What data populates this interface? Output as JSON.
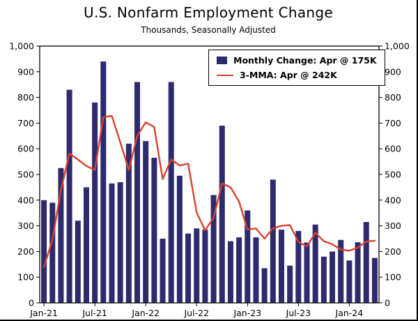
{
  "chart_data": {
    "type": "bar+line",
    "title": "U.S. Nonfarm Employment Change",
    "subtitle": "Thousands, Seasonally Adjusted",
    "ylim": [
      0,
      1000
    ],
    "ytick_step": 100,
    "grid": false,
    "legend_position": "top-right",
    "x": [
      "Jan-21",
      "Feb-21",
      "Mar-21",
      "Apr-21",
      "May-21",
      "Jun-21",
      "Jul-21",
      "Aug-21",
      "Sep-21",
      "Oct-21",
      "Nov-21",
      "Dec-21",
      "Jan-22",
      "Feb-22",
      "Mar-22",
      "Apr-22",
      "May-22",
      "Jun-22",
      "Jul-22",
      "Aug-22",
      "Sep-22",
      "Oct-22",
      "Nov-22",
      "Dec-22",
      "Jan-23",
      "Feb-23",
      "Mar-23",
      "Apr-23",
      "May-23",
      "Jun-23",
      "Jul-23",
      "Aug-23",
      "Sep-23",
      "Oct-23",
      "Nov-23",
      "Dec-23",
      "Jan-24",
      "Feb-24",
      "Mar-24",
      "Apr-24"
    ],
    "xticks": [
      {
        "index": 0,
        "label": "Jan-21"
      },
      {
        "index": 6,
        "label": "Jul-21"
      },
      {
        "index": 12,
        "label": "Jan-22"
      },
      {
        "index": 18,
        "label": "Jul-22"
      },
      {
        "index": 24,
        "label": "Jan-23"
      },
      {
        "index": 30,
        "label": "Jul-23"
      },
      {
        "index": 36,
        "label": "Jan-24"
      }
    ],
    "series": [
      {
        "name": "Monthly Change",
        "legend_label": "Monthly Change: Apr @ 175K",
        "type": "bar",
        "color": "#2d2a6d",
        "values": [
          400,
          390,
          525,
          830,
          320,
          450,
          780,
          940,
          465,
          470,
          620,
          860,
          630,
          565,
          250,
          860,
          495,
          270,
          290,
          285,
          420,
          690,
          240,
          255,
          360,
          255,
          135,
          480,
          285,
          145,
          280,
          235,
          305,
          180,
          200,
          245,
          165,
          236,
          315,
          175
        ]
      },
      {
        "name": "3-MMA",
        "legend_label": "3-MMA: Apr @ 242K",
        "type": "line",
        "color": "#d9402e",
        "values": [
          140,
          245,
          438,
          582,
          558,
          533,
          517,
          723,
          728,
          625,
          518,
          650,
          703,
          685,
          482,
          558,
          535,
          542,
          352,
          282,
          332,
          465,
          450,
          395,
          285,
          290,
          250,
          290,
          300,
          303,
          237,
          220,
          273,
          240,
          228,
          208,
          203,
          215,
          239,
          242
        ]
      }
    ]
  }
}
